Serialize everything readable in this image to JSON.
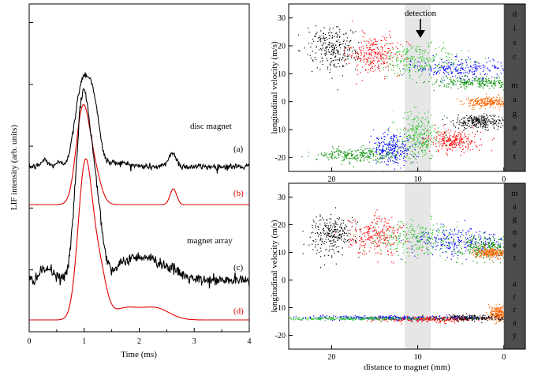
{
  "chart_data": [
    {
      "id": "lif",
      "type": "line",
      "xlabel": "Time (ms)",
      "ylabel": "LIF intensity (arb. units)",
      "xlim": [
        0,
        4
      ],
      "xticks": [
        "0",
        "1",
        "2",
        "3",
        "4"
      ],
      "annotations": [
        {
          "key": "disc",
          "text": "disc magnet",
          "color": "#000000"
        },
        {
          "key": "array",
          "text": "magnet array",
          "color": "#000000"
        }
      ],
      "series": [
        {
          "name": "(a)",
          "color": "#000000",
          "baseline": 0.86,
          "noise": 0.012,
          "peaks": [
            {
              "t": 0.28,
              "h": 0.05,
              "w": 0.06
            },
            {
              "t": 0.52,
              "h": 0.03,
              "w": 0.05
            },
            {
              "t": 0.97,
              "h": 0.62,
              "w": 0.13
            },
            {
              "t": 1.18,
              "h": 0.38,
              "w": 0.1
            },
            {
              "t": 1.6,
              "h": 0.03,
              "w": 0.2
            },
            {
              "t": 2.6,
              "h": 0.1,
              "w": 0.07
            }
          ]
        },
        {
          "name": "(b)",
          "color": "#e00000",
          "baseline": 0.88,
          "noise": 0,
          "peaks": [
            {
              "t": 0.97,
              "h": 0.53,
              "w": 0.12
            },
            {
              "t": 1.18,
              "h": 0.18,
              "w": 0.12
            },
            {
              "t": 2.62,
              "h": 0.09,
              "w": 0.06
            }
          ]
        },
        {
          "name": "(c)",
          "color": "#000000",
          "baseline": 0.9,
          "noise": 0.012,
          "peaks": [
            {
              "t": 0.32,
              "h": 0.05,
              "w": 0.12
            },
            {
              "t": 0.97,
              "h": 0.75,
              "w": 0.12
            },
            {
              "t": 1.2,
              "h": 0.35,
              "w": 0.12
            },
            {
              "t": 1.8,
              "h": 0.07,
              "w": 0.25
            },
            {
              "t": 2.2,
              "h": 0.07,
              "w": 0.25
            },
            {
              "t": 2.6,
              "h": 0.03,
              "w": 0.2
            }
          ]
        },
        {
          "name": "(d)",
          "color": "#e00000",
          "baseline": 0.9,
          "noise": 0,
          "peaks": [
            {
              "t": 1.02,
              "h": 0.61,
              "w": 0.13
            },
            {
              "t": 1.28,
              "h": 0.18,
              "w": 0.12
            },
            {
              "t": 1.75,
              "h": 0.045,
              "w": 0.25
            },
            {
              "t": 2.3,
              "h": 0.045,
              "w": 0.25
            }
          ]
        }
      ]
    },
    {
      "id": "top",
      "type": "scatter",
      "xlabel": "",
      "ylabel": "longitudinal velocity (m/s)",
      "xlim": [
        25,
        -2.5
      ],
      "ylim": [
        -25,
        35
      ],
      "xticks": [
        20,
        10,
        0
      ],
      "yticks": [
        -20,
        -10,
        0,
        10,
        20,
        30
      ],
      "detection_band": [
        8.5,
        11.5
      ],
      "detection_label": "detection",
      "magnet_label": "disc magnet",
      "clusters": [
        {
          "color": "#000000",
          "cx": 20,
          "cy": 19,
          "sx": 1.3,
          "sy": 3.8
        },
        {
          "color": "#ff0000",
          "cx": 15,
          "cy": 17,
          "sx": 1.6,
          "sy": 3.5
        },
        {
          "color": "#22c322",
          "cx": 10,
          "cy": 15,
          "sx": 2.5,
          "sy": 3
        },
        {
          "color": "#0000ff",
          "cx": 5,
          "cy": 12,
          "sx": 3,
          "sy": 1.8
        },
        {
          "color": "#008f00",
          "cx": 3,
          "cy": 7,
          "sx": 2.5,
          "sy": 1
        },
        {
          "color": "#ff6600",
          "cx": 2,
          "cy": 0,
          "sx": 1.2,
          "sy": 1
        },
        {
          "color": "#000000",
          "cx": 3,
          "cy": -7,
          "sx": 1.5,
          "sy": 1.2
        },
        {
          "color": "#ff0000",
          "cx": 6,
          "cy": -14,
          "sx": 1.5,
          "sy": 2
        },
        {
          "color": "#22c322",
          "cx": 10,
          "cy": -12,
          "sx": 1.5,
          "sy": 4
        },
        {
          "color": "#0000ff",
          "cx": 13,
          "cy": -17,
          "sx": 1.2,
          "sy": 2.5
        },
        {
          "color": "#008f00",
          "cx": 17,
          "cy": -19,
          "sx": 2.5,
          "sy": 1.2
        }
      ]
    },
    {
      "id": "bottom",
      "type": "scatter",
      "xlabel": "distance to magnet (mm)",
      "ylabel": "longitudinal velocity (m/s)",
      "xlim": [
        25,
        -2.5
      ],
      "ylim": [
        -25,
        35
      ],
      "xticks": [
        20,
        10,
        0
      ],
      "yticks": [
        -20,
        -10,
        0,
        10,
        20,
        30
      ],
      "detection_band": [
        8.5,
        11.5
      ],
      "detection_label": "",
      "magnet_label": "magnet array",
      "clusters": [
        {
          "color": "#000000",
          "cx": 20,
          "cy": 17,
          "sx": 1.3,
          "sy": 3.5
        },
        {
          "color": "#ff0000",
          "cx": 15,
          "cy": 16,
          "sx": 1.5,
          "sy": 3.5
        },
        {
          "color": "#22c322",
          "cx": 10,
          "cy": 15,
          "sx": 2.5,
          "sy": 3
        },
        {
          "color": "#0000ff",
          "cx": 5,
          "cy": 14,
          "sx": 3,
          "sy": 2.5
        },
        {
          "color": "#008f00",
          "cx": 2,
          "cy": 12,
          "sx": 1.8,
          "sy": 2
        },
        {
          "color": "#ff6600",
          "cx": 1.5,
          "cy": 10,
          "sx": 1,
          "sy": 1
        },
        {
          "color": "#ff6600",
          "cx": 0.6,
          "cy": -12,
          "sx": 0.6,
          "sy": 1.5
        },
        {
          "color": "#000000",
          "cx": 4,
          "cy": -13.5,
          "sx": 2,
          "sy": 0.5
        },
        {
          "color": "#ff0000",
          "cx": 9,
          "cy": -14,
          "sx": 3,
          "sy": 0.5
        },
        {
          "color": "#0000ff",
          "cx": 14,
          "cy": -13.5,
          "sx": 5,
          "sy": 0.4
        },
        {
          "color": "#22c322",
          "cx": 18,
          "cy": -13.8,
          "sx": 5,
          "sy": 0.3
        }
      ]
    }
  ]
}
